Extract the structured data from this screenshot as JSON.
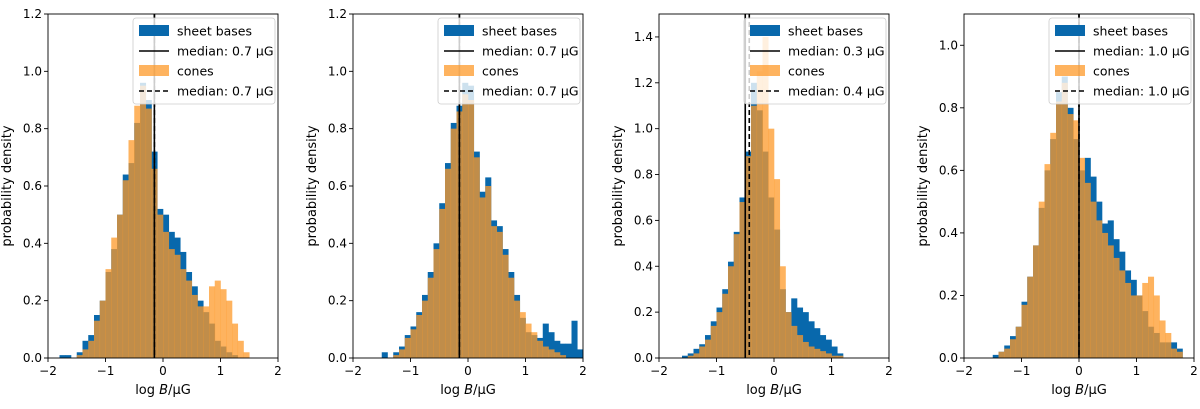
{
  "colors": {
    "sheet": "#0868ac",
    "cones": "#fe9929"
  },
  "chart_data": [
    {
      "type": "histogram",
      "xlabel": "log B/μG",
      "ylabel": "probability density",
      "xlim": [
        -2,
        2
      ],
      "ylim": [
        0,
        1.2
      ],
      "xticks": [
        -2,
        -1,
        0,
        1,
        2
      ],
      "yticks": [
        0.0,
        0.2,
        0.4,
        0.6,
        0.8,
        1.0,
        1.2
      ],
      "bin_width": 0.1,
      "legend_position": "top-right",
      "series": [
        {
          "name": "sheet bases",
          "bin_start": -1.9,
          "values": [
            0.0,
            0.01,
            0.01,
            0.0,
            0.02,
            0.06,
            0.08,
            0.15,
            0.2,
            0.3,
            0.38,
            0.5,
            0.64,
            0.68,
            0.82,
            0.96,
            0.9,
            0.72,
            0.52,
            0.5,
            0.44,
            0.42,
            0.37,
            0.3,
            0.25,
            0.2,
            0.16,
            0.12,
            0.06,
            0.04,
            0.02,
            0.01,
            0.0,
            0.0,
            0.0,
            0.0
          ]
        },
        {
          "name": "cones",
          "bin_start": -1.9,
          "values": [
            0.0,
            0.0,
            0.0,
            0.0,
            0.01,
            0.03,
            0.06,
            0.13,
            0.2,
            0.31,
            0.42,
            0.5,
            0.62,
            0.76,
            0.88,
            0.95,
            0.87,
            0.66,
            0.5,
            0.44,
            0.38,
            0.36,
            0.31,
            0.27,
            0.22,
            0.18,
            0.18,
            0.25,
            0.27,
            0.24,
            0.2,
            0.12,
            0.06,
            0.02,
            0.0,
            0.0
          ]
        }
      ],
      "medians": [
        {
          "label": "median: 0.7 μG",
          "x": -0.15,
          "style": "solid"
        },
        {
          "label": "median: 0.7 μG",
          "x": -0.15,
          "style": "dashed"
        }
      ]
    },
    {
      "type": "histogram",
      "xlabel": "log B/μG",
      "ylabel": "probability density",
      "xlim": [
        -2,
        2
      ],
      "ylim": [
        0,
        1.2
      ],
      "xticks": [
        -2,
        -1,
        0,
        1,
        2
      ],
      "yticks": [
        0.0,
        0.2,
        0.4,
        0.6,
        0.8,
        1.0,
        1.2
      ],
      "bin_width": 0.1,
      "legend_position": "top-right",
      "series": [
        {
          "name": "sheet bases",
          "bin_start": -1.5,
          "values": [
            0.02,
            0.0,
            0.02,
            0.04,
            0.08,
            0.11,
            0.16,
            0.22,
            0.3,
            0.4,
            0.54,
            0.68,
            0.82,
            0.88,
            0.96,
            0.95,
            0.72,
            0.58,
            0.63,
            0.48,
            0.46,
            0.38,
            0.3,
            0.22,
            0.14,
            0.09,
            0.08,
            0.07,
            0.12,
            0.09,
            0.06,
            0.05,
            0.05,
            0.13,
            0.03,
            0.02
          ]
        },
        {
          "name": "cones",
          "bin_start": -1.5,
          "values": [
            0.0,
            0.0,
            0.01,
            0.03,
            0.07,
            0.1,
            0.15,
            0.2,
            0.28,
            0.38,
            0.52,
            0.66,
            0.8,
            0.86,
            0.92,
            0.9,
            0.7,
            0.56,
            0.6,
            0.46,
            0.44,
            0.36,
            0.28,
            0.2,
            0.16,
            0.12,
            0.09,
            0.06,
            0.04,
            0.03,
            0.02,
            0.01,
            0.0,
            0.0,
            0.0,
            0.0
          ]
        }
      ],
      "medians": [
        {
          "label": "median: 0.7 μG",
          "x": -0.15,
          "style": "solid"
        },
        {
          "label": "median: 0.7 μG",
          "x": -0.15,
          "style": "dashed"
        }
      ]
    },
    {
      "type": "histogram",
      "xlabel": "log B/μG",
      "ylabel": "probability density",
      "xlim": [
        -2,
        2
      ],
      "ylim": [
        0,
        1.5
      ],
      "xticks": [
        -2,
        -1,
        0,
        1,
        2
      ],
      "yticks": [
        0.0,
        0.2,
        0.4,
        0.6,
        0.8,
        1.0,
        1.2,
        1.4
      ],
      "bin_width": 0.1,
      "legend_position": "top-right",
      "series": [
        {
          "name": "sheet bases",
          "bin_start": -1.6,
          "values": [
            0.01,
            0.02,
            0.04,
            0.06,
            0.1,
            0.16,
            0.22,
            0.3,
            0.42,
            0.55,
            0.7,
            0.9,
            1.2,
            1.08,
            0.9,
            0.7,
            0.56,
            0.3,
            0.2,
            0.26,
            0.22,
            0.2,
            0.16,
            0.13,
            0.1,
            0.08,
            0.05,
            0.02
          ]
        },
        {
          "name": "cones",
          "bin_start": -1.6,
          "values": [
            0.0,
            0.01,
            0.02,
            0.05,
            0.08,
            0.14,
            0.2,
            0.28,
            0.4,
            0.54,
            0.68,
            0.88,
            1.1,
            1.25,
            1.4,
            1.0,
            0.78,
            0.4,
            0.2,
            0.14,
            0.1,
            0.07,
            0.05,
            0.04,
            0.03,
            0.02,
            0.01,
            0.01
          ]
        }
      ],
      "medians": [
        {
          "label": "median: 0.3 μG",
          "x": -0.5,
          "style": "solid"
        },
        {
          "label": "median: 0.4 μG",
          "x": -0.43,
          "style": "dashed"
        }
      ]
    },
    {
      "type": "histogram",
      "xlabel": "log B/μG",
      "ylabel": "probability density",
      "xlim": [
        -2,
        2
      ],
      "ylim": [
        0,
        1.1
      ],
      "xticks": [
        -2,
        -1,
        0,
        1,
        2
      ],
      "yticks": [
        0.0,
        0.2,
        0.4,
        0.6,
        0.8,
        1.0
      ],
      "bin_width": 0.1,
      "legend_position": "top-right",
      "series": [
        {
          "name": "sheet bases",
          "bin_start": -1.6,
          "values": [
            0.0,
            0.01,
            0.02,
            0.04,
            0.07,
            0.1,
            0.18,
            0.26,
            0.36,
            0.48,
            0.6,
            0.7,
            0.85,
            0.9,
            0.8,
            0.7,
            0.6,
            0.64,
            0.58,
            0.5,
            0.43,
            0.44,
            0.38,
            0.34,
            0.28,
            0.25,
            0.2,
            0.15,
            0.1,
            0.08,
            0.05,
            0.05,
            0.05,
            0.03
          ]
        },
        {
          "name": "cones",
          "bin_start": -1.6,
          "values": [
            0.0,
            0.0,
            0.02,
            0.03,
            0.06,
            0.1,
            0.17,
            0.26,
            0.36,
            0.5,
            0.62,
            0.72,
            0.82,
            0.88,
            0.78,
            0.76,
            0.64,
            0.56,
            0.5,
            0.44,
            0.4,
            0.36,
            0.32,
            0.28,
            0.24,
            0.2,
            0.2,
            0.24,
            0.26,
            0.2,
            0.12,
            0.08,
            0.03,
            0.02
          ]
        }
      ],
      "medians": [
        {
          "label": "median: 1.0 μG",
          "x": 0.0,
          "style": "solid"
        },
        {
          "label": "median: 1.0 μG",
          "x": 0.0,
          "style": "dashed"
        }
      ]
    }
  ]
}
